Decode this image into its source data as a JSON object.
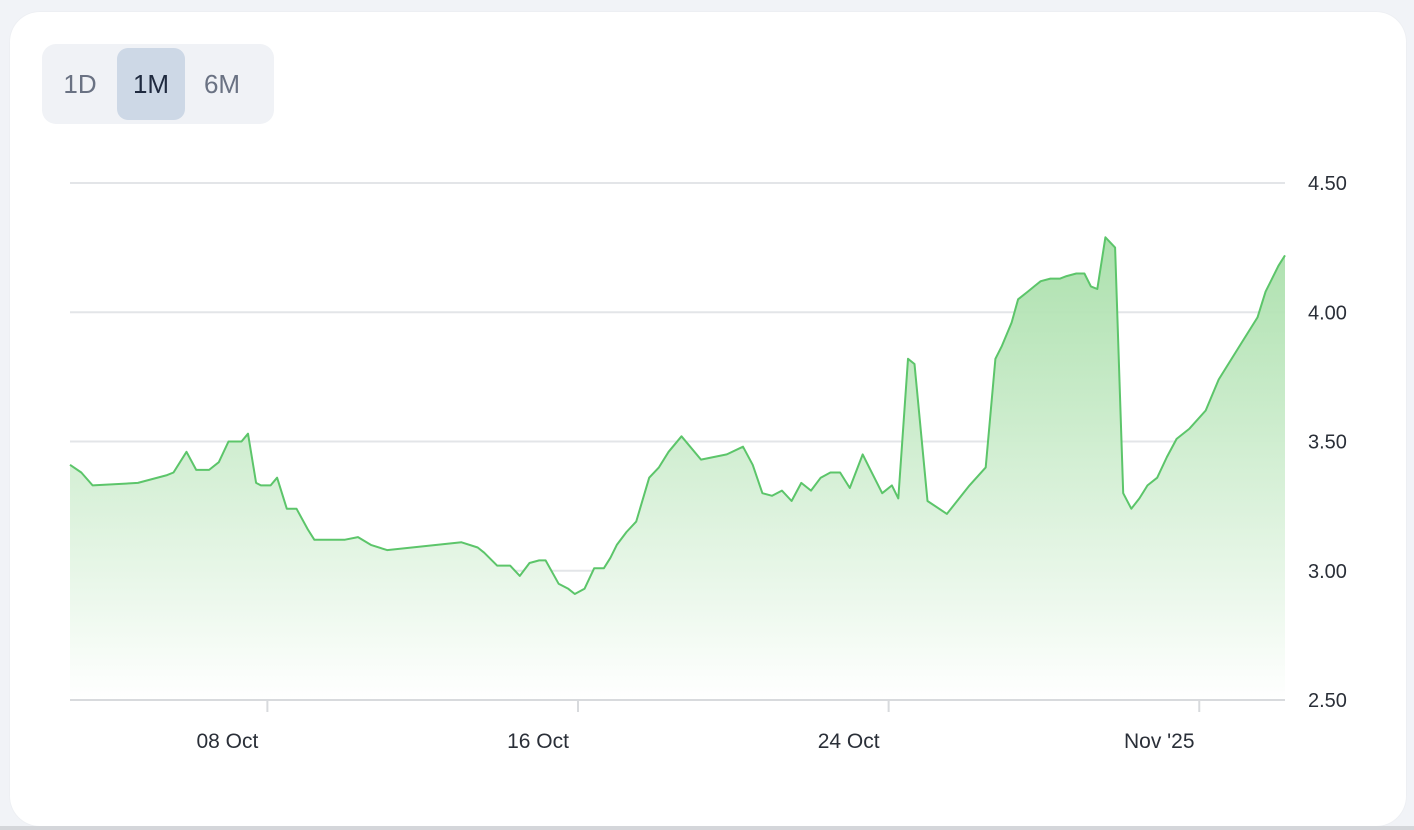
{
  "range_selector": {
    "options": [
      {
        "label": "1D",
        "active": false
      },
      {
        "label": "1M",
        "active": true
      },
      {
        "label": "6M",
        "active": false
      }
    ]
  },
  "colors": {
    "line": "#5cc56a",
    "fill_top": "#a8dfa9",
    "fill_bottom": "#ffffff",
    "grid": "#e3e5e8",
    "axis_text": "#2a2f38",
    "active_tab": "#cdd8e6"
  },
  "chart_data": {
    "type": "area",
    "title": "",
    "xlabel": "",
    "ylabel": "",
    "y_axis_position": "right",
    "ylim": [
      2.5,
      4.5
    ],
    "y_ticks": [
      {
        "value": 4.5,
        "label": "4.50"
      },
      {
        "value": 4.0,
        "label": "4.00"
      },
      {
        "value": 3.5,
        "label": "3.50"
      },
      {
        "value": 3.0,
        "label": "3.00"
      },
      {
        "value": 2.5,
        "label": "2.50"
      }
    ],
    "xlim": [
      "2025-10-02 22:00",
      "2025-11-03 05:00"
    ],
    "x_ticks": [
      {
        "value": "2025-10-08",
        "label": "08 Oct"
      },
      {
        "value": "2025-10-16",
        "label": "16 Oct"
      },
      {
        "value": "2025-10-24",
        "label": "24 Oct"
      },
      {
        "value": "2025-11-01",
        "label": "Nov '25"
      }
    ],
    "grid": true,
    "series": [
      {
        "x": [
          "2025-10-02 22:00",
          "2025-10-03 05:00",
          "2025-10-03 12:00",
          "2025-10-04 16:00",
          "2025-10-05 10:00",
          "2025-10-05 14:00",
          "2025-10-05 22:00",
          "2025-10-06 04:00",
          "2025-10-06 12:00",
          "2025-10-06 18:00",
          "2025-10-07 00:00",
          "2025-10-07 08:00",
          "2025-10-07 12:00",
          "2025-10-07 17:00",
          "2025-10-07 20:00",
          "2025-10-08 02:00",
          "2025-10-08 06:00",
          "2025-10-08 12:00",
          "2025-10-08 18:00",
          "2025-10-09 01:00",
          "2025-10-09 05:00",
          "2025-10-09 11:00",
          "2025-10-09 16:00",
          "2025-10-10 00:00",
          "2025-10-10 08:00",
          "2025-10-10 16:00",
          "2025-10-11 02:00",
          "2025-10-13 00:00",
          "2025-10-13 10:00",
          "2025-10-13 14:00",
          "2025-10-13 22:00",
          "2025-10-14 06:00",
          "2025-10-14 12:00",
          "2025-10-14 18:00",
          "2025-10-15 00:00",
          "2025-10-15 04:00",
          "2025-10-15 12:00",
          "2025-10-15 18:00",
          "2025-10-15 22:00",
          "2025-10-16 04:00",
          "2025-10-16 10:00",
          "2025-10-16 16:00",
          "2025-10-16 20:00",
          "2025-10-17 00:00",
          "2025-10-17 06:00",
          "2025-10-17 12:00",
          "2025-10-17 20:00",
          "2025-10-18 02:00",
          "2025-10-18 08:00",
          "2025-10-18 16:00",
          "2025-10-19 04:00",
          "2025-10-19 20:00",
          "2025-10-20 06:00",
          "2025-10-20 12:00",
          "2025-10-20 18:00",
          "2025-10-21 00:00",
          "2025-10-21 06:00",
          "2025-10-21 12:00",
          "2025-10-21 18:00",
          "2025-10-22 00:00",
          "2025-10-22 06:00",
          "2025-10-22 12:00",
          "2025-10-22 18:00",
          "2025-10-23 00:00",
          "2025-10-23 08:00",
          "2025-10-23 12:00",
          "2025-10-23 20:00",
          "2025-10-24 02:00",
          "2025-10-24 06:00",
          "2025-10-24 12:00",
          "2025-10-24 16:00",
          "2025-10-25 00:00",
          "2025-10-25 12:00",
          "2025-10-26 02:00",
          "2025-10-26 12:00",
          "2025-10-26 18:00",
          "2025-10-26 22:00",
          "2025-10-27 04:00",
          "2025-10-27 08:00",
          "2025-10-27 14:00",
          "2025-10-27 18:00",
          "2025-10-27 22:00",
          "2025-10-28 04:00",
          "2025-10-28 10:00",
          "2025-10-28 14:00",
          "2025-10-28 20:00",
          "2025-10-29 01:00",
          "2025-10-29 05:00",
          "2025-10-29 09:00",
          "2025-10-29 14:00",
          "2025-10-29 20:00",
          "2025-10-30 01:00",
          "2025-10-30 06:00",
          "2025-10-30 11:00",
          "2025-10-30 16:00",
          "2025-10-30 22:00",
          "2025-10-31 04:00",
          "2025-10-31 10:00",
          "2025-10-31 18:00",
          "2025-11-01 04:00",
          "2025-11-01 12:00",
          "2025-11-02 00:00",
          "2025-11-02 12:00",
          "2025-11-02 17:00",
          "2025-11-02 21:00",
          "2025-11-03 01:00",
          "2025-11-03 05:00"
        ],
        "y": [
          3.41,
          3.38,
          3.33,
          3.34,
          3.37,
          3.38,
          3.46,
          3.39,
          3.39,
          3.42,
          3.5,
          3.5,
          3.53,
          3.34,
          3.33,
          3.33,
          3.36,
          3.24,
          3.24,
          3.16,
          3.12,
          3.12,
          3.12,
          3.12,
          3.13,
          3.1,
          3.08,
          3.11,
          3.09,
          3.07,
          3.02,
          3.02,
          2.98,
          3.03,
          3.04,
          3.04,
          2.95,
          2.93,
          2.91,
          2.93,
          3.01,
          3.01,
          3.05,
          3.1,
          3.15,
          3.19,
          3.36,
          3.4,
          3.46,
          3.52,
          3.43,
          3.45,
          3.48,
          3.41,
          3.3,
          3.29,
          3.31,
          3.27,
          3.34,
          3.31,
          3.36,
          3.38,
          3.38,
          3.32,
          3.45,
          3.4,
          3.3,
          3.33,
          3.28,
          3.82,
          3.8,
          3.27,
          3.22,
          3.33,
          3.4,
          3.82,
          3.87,
          3.96,
          4.05,
          4.08,
          4.1,
          4.12,
          4.13,
          4.13,
          4.14,
          4.15,
          4.15,
          4.1,
          4.09,
          4.29,
          4.25,
          3.3,
          3.24,
          3.28,
          3.33,
          3.36,
          3.44,
          3.51,
          3.55,
          3.62,
          3.74,
          3.86,
          3.98,
          4.08,
          4.13,
          4.18,
          4.22
        ]
      }
    ]
  }
}
